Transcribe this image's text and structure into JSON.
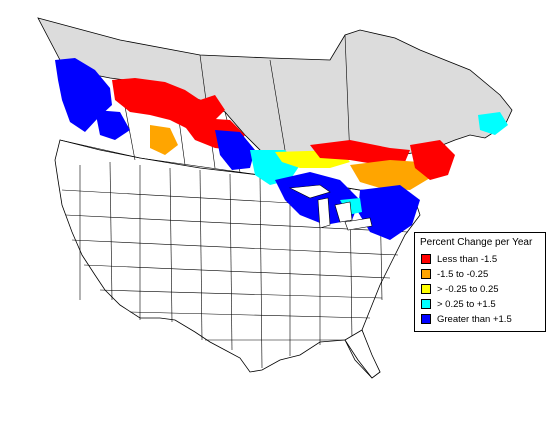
{
  "legend": {
    "title": "Percent Change per Year",
    "items": [
      {
        "label": "Less than -1.5",
        "color": "#ff0000"
      },
      {
        "label": "-1.5 to -0.25",
        "color": "#ffa500"
      },
      {
        "label": "> -0.25 to 0.25",
        "color": "#ffff00"
      },
      {
        "label": "> 0.25 to +1.5",
        "color": "#00ffff"
      },
      {
        "label": "Greater than +1.5",
        "color": "#0000ff"
      }
    ]
  },
  "colors": {
    "no_data_fill": "#dcdcdc",
    "state_fill": "#ffffff",
    "border": "#000000"
  }
}
